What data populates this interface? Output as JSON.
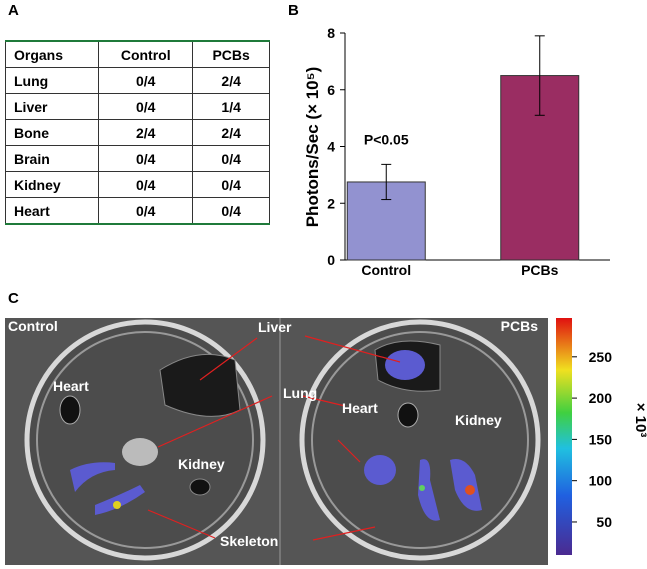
{
  "panel_labels": {
    "a": "A",
    "b": "B",
    "c": "C"
  },
  "table": {
    "header": [
      "Organs",
      "Control",
      "PCBs"
    ],
    "rows": [
      [
        "Lung",
        "0/4",
        "2/4"
      ],
      [
        "Liver",
        "0/4",
        "1/4"
      ],
      [
        "Bone",
        "2/4",
        "2/4"
      ],
      [
        "Brain",
        "0/4",
        "0/4"
      ],
      [
        "Kidney",
        "0/4",
        "0/4"
      ],
      [
        "Heart",
        "0/4",
        "0/4"
      ]
    ]
  },
  "chart_data": {
    "type": "bar",
    "ylabel": "Photons/Sec (× 10⁵)",
    "categories": [
      "Control",
      "PCBs"
    ],
    "values": [
      2.75,
      6.5
    ],
    "errors": [
      0.62,
      1.4
    ],
    "colors": [
      "#9292d0",
      "#9a2d62"
    ],
    "ylim": [
      0,
      8
    ],
    "yticks": [
      0,
      2,
      4,
      6,
      8
    ],
    "annotation": "P<0.05"
  },
  "image": {
    "labels": {
      "control": "Control",
      "pcbs": "PCBs",
      "liver": "Liver",
      "lung": "Lung",
      "heart_left": "Heart",
      "kidney_left": "Kidney",
      "skeleton": "Skeleton",
      "heart_right": "Heart",
      "kidney_right": "Kidney"
    },
    "colorbar": {
      "lim": [
        10,
        297
      ],
      "ticks": [
        50,
        100,
        150,
        200,
        250
      ],
      "label": "× 10³"
    }
  }
}
